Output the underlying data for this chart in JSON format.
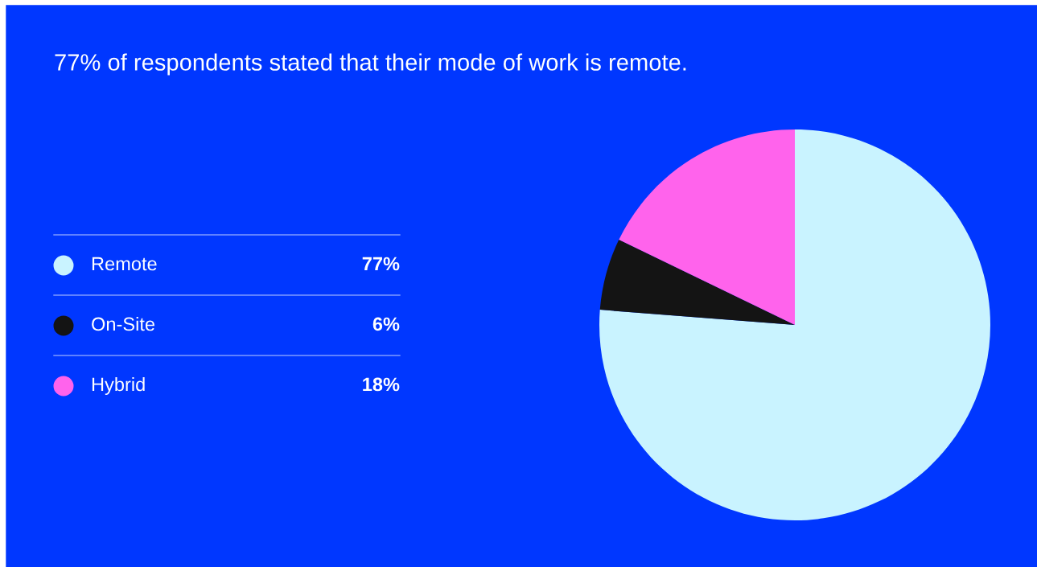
{
  "chart_data": {
    "type": "pie",
    "title": "77% of respondents stated that their mode of work is remote.",
    "categories": [
      "Remote",
      "On-Site",
      "Hybrid"
    ],
    "values": [
      77,
      6,
      18
    ],
    "colors": [
      "#c9f3ff",
      "#141414",
      "#ff63ec"
    ],
    "value_labels": [
      "77%",
      "6%",
      "18%"
    ],
    "legend": "left"
  }
}
